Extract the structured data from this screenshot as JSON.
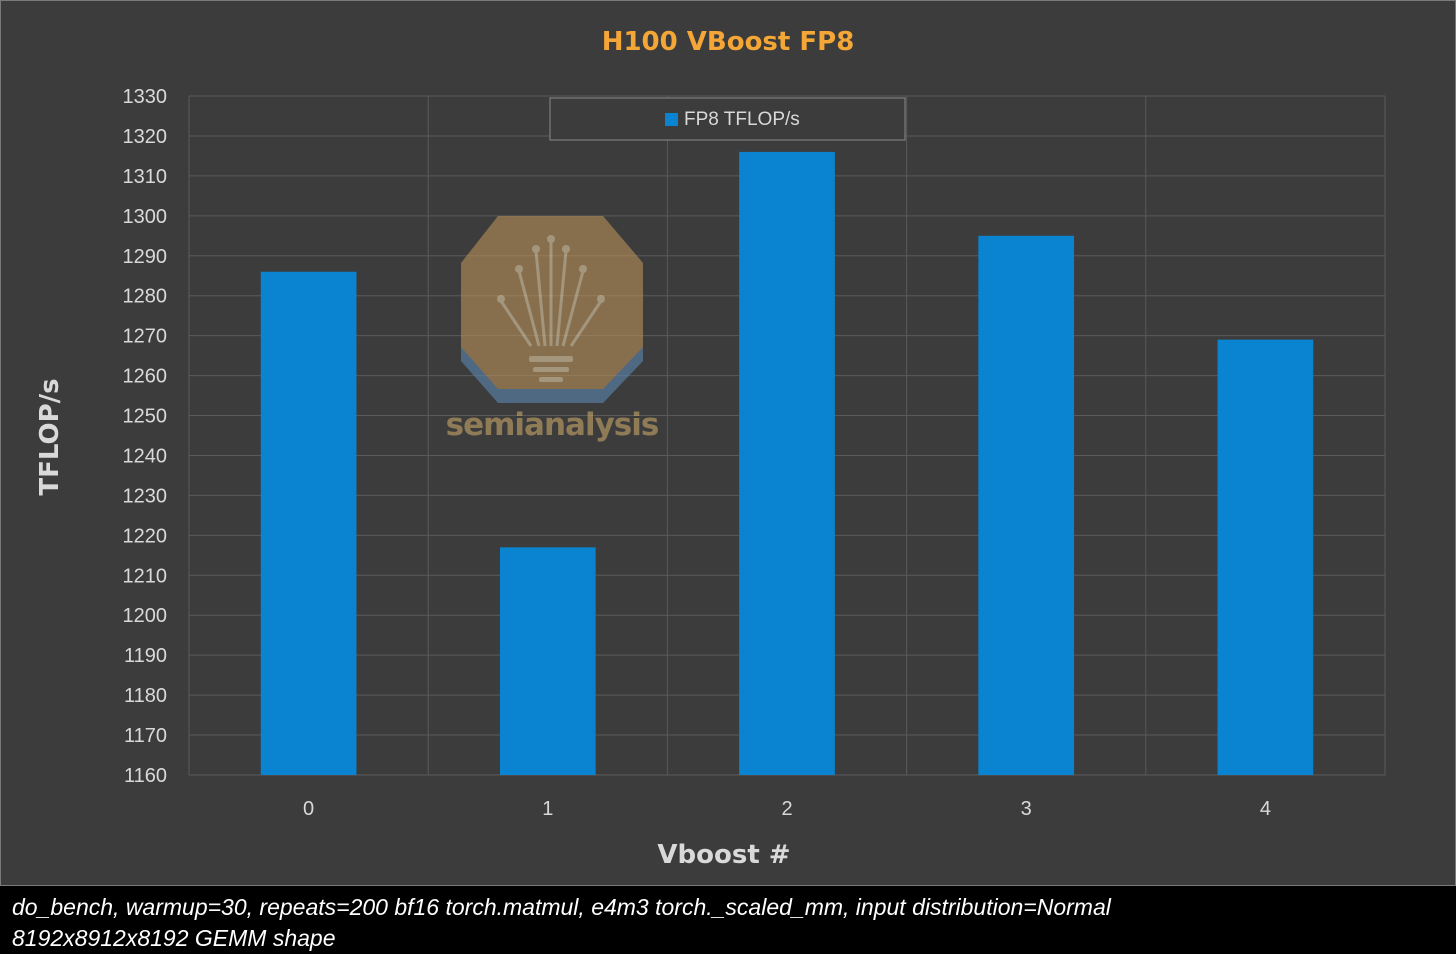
{
  "chart_data": {
    "type": "bar",
    "title": "H100 VBoost FP8",
    "xlabel": "Vboost #",
    "ylabel": "TFLOP/s",
    "categories": [
      "0",
      "1",
      "2",
      "3",
      "4"
    ],
    "series": [
      {
        "name": "FP8 TFLOP/s",
        "values": [
          1286,
          1217,
          1316,
          1295,
          1269
        ]
      }
    ],
    "ylim": [
      1160,
      1330
    ],
    "y_ticks": [
      "1160",
      "1170",
      "1180",
      "1190",
      "1200",
      "1210",
      "1220",
      "1230",
      "1240",
      "1250",
      "1260",
      "1270",
      "1280",
      "1290",
      "1300",
      "1310",
      "1320",
      "1330"
    ],
    "grid": true,
    "legend_position": "top",
    "colors": {
      "bar": "#0a84d0",
      "title": "#f4a636",
      "background": "#3c3c3c",
      "grid": "#5a5a5a",
      "text": "#d9d9d9"
    }
  },
  "watermark": {
    "text": "semianalysis"
  },
  "caption": {
    "line1": "do_bench, warmup=30, repeats=200 bf16 torch.matmul, e4m3 torch._scaled_mm, input distribution=Normal",
    "line2": "8192x8912x8192 GEMM shape"
  }
}
